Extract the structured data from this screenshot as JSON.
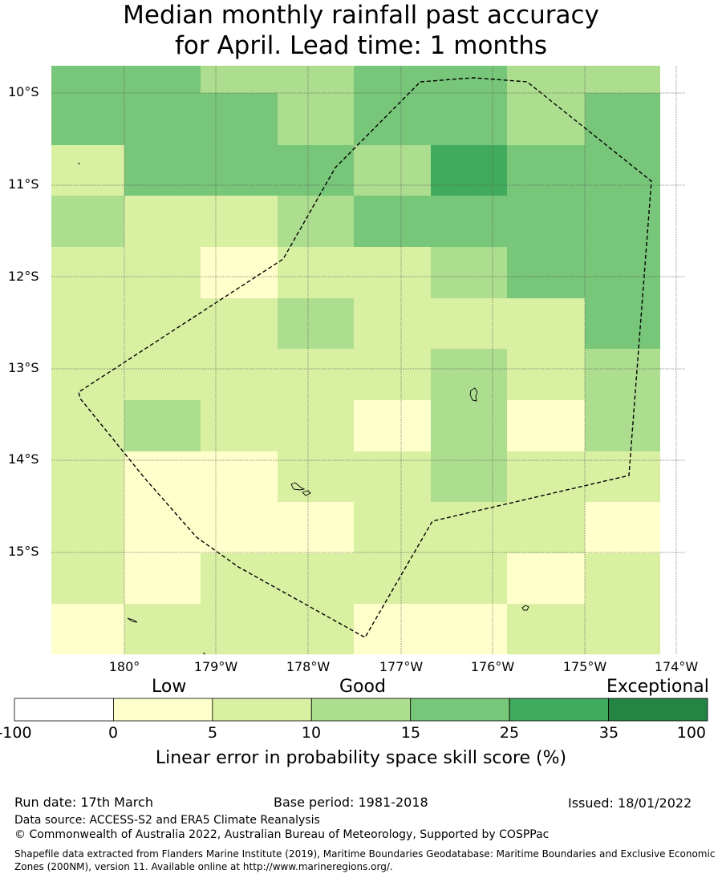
{
  "title": {
    "line1": "Median monthly rainfall past accuracy",
    "line2": "for April. Lead time: 1 months"
  },
  "map": {
    "lat_labels": [
      "10°S",
      "11°S",
      "12°S",
      "13°S",
      "14°S",
      "15°S"
    ],
    "lon_labels": [
      "180°",
      "179°W",
      "178°W",
      "177°W",
      "176°W",
      "175°W",
      "174°W"
    ],
    "grid_levels": [
      [
        3,
        3,
        2,
        2,
        3,
        3,
        2,
        2
      ],
      [
        3,
        3,
        3,
        2,
        3,
        3,
        2,
        3
      ],
      [
        1,
        3,
        3,
        3,
        2,
        4,
        3,
        3
      ],
      [
        2,
        1,
        1,
        2,
        3,
        3,
        3,
        3
      ],
      [
        1,
        1,
        0,
        1,
        1,
        2,
        3,
        3
      ],
      [
        1,
        1,
        1,
        2,
        1,
        1,
        1,
        3
      ],
      [
        1,
        1,
        1,
        1,
        1,
        2,
        1,
        2
      ],
      [
        1,
        2,
        1,
        1,
        0,
        2,
        0,
        2
      ],
      [
        1,
        0,
        0,
        1,
        1,
        2,
        1,
        1
      ],
      [
        1,
        0,
        0,
        0,
        1,
        1,
        1,
        0
      ],
      [
        1,
        0,
        1,
        1,
        1,
        1,
        0,
        1
      ],
      [
        0,
        1,
        1,
        1,
        0,
        0,
        1,
        1
      ]
    ],
    "boundary": "EEZ (200NM)"
  },
  "colorbar": {
    "category_labels": [
      "Low",
      "Good",
      "Exceptional"
    ],
    "ticks": [
      "-100",
      "0",
      "5",
      "10",
      "15",
      "25",
      "35",
      "100"
    ],
    "colors": [
      "#ffffff",
      "#ffffcc",
      "#d9f0a3",
      "#addd8e",
      "#78c679",
      "#41ab5d",
      "#238443"
    ],
    "title": "Linear error in probability space skill score (%)"
  },
  "footer": {
    "run_date": "Run date: 17th March",
    "base_period": "Base period: 1981-2018",
    "issued": "Issued: 18/01/2022",
    "data_source": "Data source: ACCESS-S2 and ERA5 Climate Reanalysis",
    "copyright": "© Commonwealth of Australia 2022, Australian Bureau of Meteorology, Supported by COSPPac",
    "shapefile": "Shapefile data extracted from Flanders Marine Institute (2019), Maritime Boundaries Geodatabase: Maritime Boundaries and Exclusive Economic Zones (200NM), version 11. Available online at http://www.marineregions.org/."
  }
}
